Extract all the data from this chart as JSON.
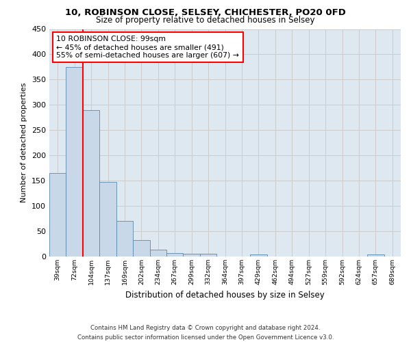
{
  "title1": "10, ROBINSON CLOSE, SELSEY, CHICHESTER, PO20 0FD",
  "title2": "Size of property relative to detached houses in Selsey",
  "xlabel": "Distribution of detached houses by size in Selsey",
  "ylabel": "Number of detached properties",
  "categories": [
    "39sqm",
    "72sqm",
    "104sqm",
    "137sqm",
    "169sqm",
    "202sqm",
    "234sqm",
    "267sqm",
    "299sqm",
    "332sqm",
    "364sqm",
    "397sqm",
    "429sqm",
    "462sqm",
    "494sqm",
    "527sqm",
    "559sqm",
    "592sqm",
    "624sqm",
    "657sqm",
    "689sqm"
  ],
  "values": [
    165,
    375,
    290,
    148,
    70,
    33,
    14,
    7,
    6,
    5,
    0,
    0,
    4,
    0,
    0,
    0,
    0,
    0,
    0,
    4,
    0
  ],
  "bar_color": "#c8d8e8",
  "bar_edge_color": "#5a8ab0",
  "grid_color": "#cccccc",
  "bg_color": "#dde8f0",
  "red_line_x": 2,
  "annotation_text": "10 ROBINSON CLOSE: 99sqm\n← 45% of detached houses are smaller (491)\n55% of semi-detached houses are larger (607) →",
  "annotation_box_color": "white",
  "annotation_box_edge": "red",
  "footer": "Contains HM Land Registry data © Crown copyright and database right 2024.\nContains public sector information licensed under the Open Government Licence v3.0.",
  "ylim": [
    0,
    450
  ],
  "yticks": [
    0,
    50,
    100,
    150,
    200,
    250,
    300,
    350,
    400,
    450
  ]
}
